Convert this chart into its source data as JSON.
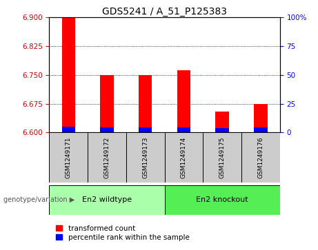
{
  "title": "GDS5241 / A_51_P125383",
  "samples": [
    "GSM1249171",
    "GSM1249172",
    "GSM1249173",
    "GSM1249174",
    "GSM1249175",
    "GSM1249176"
  ],
  "red_values": [
    6.9,
    6.75,
    6.75,
    6.762,
    6.655,
    6.675
  ],
  "blue_values": [
    6.615,
    6.614,
    6.613,
    6.613,
    6.612,
    6.614
  ],
  "ymin": 6.6,
  "ymax": 6.9,
  "yticks_left": [
    6.6,
    6.675,
    6.75,
    6.825,
    6.9
  ],
  "yticks_right": [
    0,
    25,
    50,
    75,
    100
  ],
  "group_row_label": "genotype/variation",
  "group_configs": [
    {
      "start": 0,
      "end": 2,
      "label": "En2 wildtype",
      "color": "#aaffaa"
    },
    {
      "start": 3,
      "end": 5,
      "label": "En2 knockout",
      "color": "#55ee55"
    }
  ],
  "legend_items": [
    {
      "label": "transformed count",
      "color": "red"
    },
    {
      "label": "percentile rank within the sample",
      "color": "blue"
    }
  ],
  "bar_width": 0.35,
  "plot_bg": "white",
  "left_tick_color": "#cc0000",
  "right_tick_color": "blue",
  "title_fontsize": 10,
  "tick_fontsize": 7.5,
  "sample_label_fontsize": 6.5,
  "group_label_fontsize": 8,
  "legend_fontsize": 7.5
}
